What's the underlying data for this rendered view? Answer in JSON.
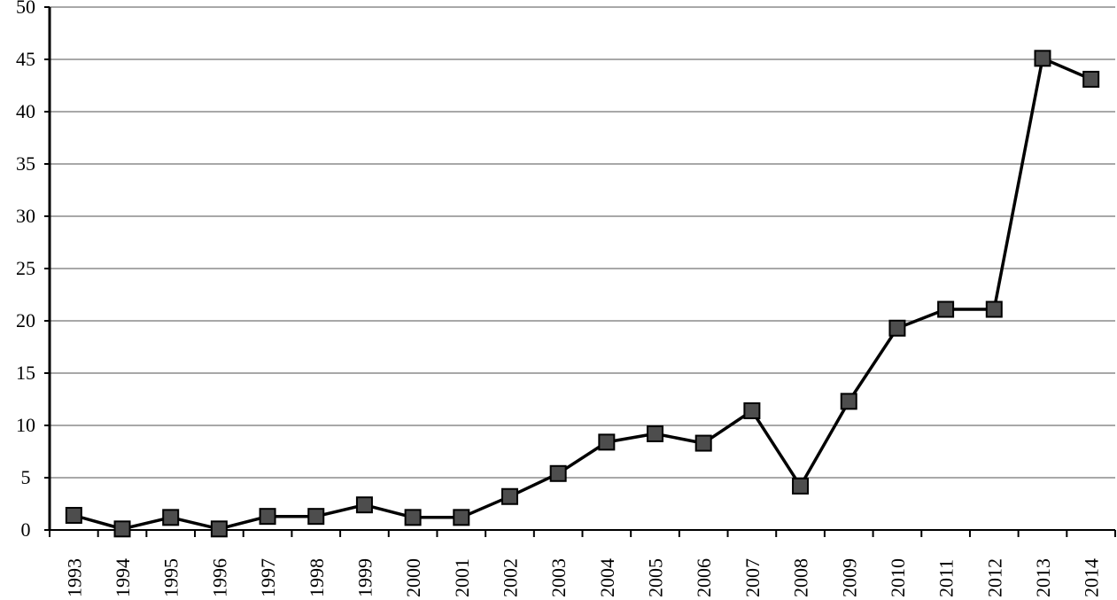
{
  "chart_data": {
    "type": "line",
    "title": "",
    "xlabel": "",
    "ylabel": "",
    "categories": [
      "1993",
      "1994",
      "1995",
      "1996",
      "1997",
      "1998",
      "1999",
      "2000",
      "2001",
      "2002",
      "2003",
      "2004",
      "2005",
      "2006",
      "2007",
      "2008",
      "2009",
      "2010",
      "2011",
      "2012",
      "2013",
      "2014"
    ],
    "series": [
      {
        "values": [
          1.4,
          0.1,
          1.2,
          0.1,
          1.3,
          1.3,
          2.4,
          1.2,
          1.2,
          3.2,
          5.4,
          8.4,
          9.2,
          8.3,
          11.4,
          4.2,
          12.3,
          19.3,
          21.1,
          21.1,
          45.1,
          43.1
        ]
      }
    ],
    "ylim": [
      0,
      50
    ],
    "yticks": [
      0,
      5,
      10,
      15,
      20,
      25,
      30,
      35,
      40,
      45,
      50
    ],
    "grid": true,
    "legend": "none",
    "colors": {
      "line": "#000000",
      "marker_fill": "#4d4d4d",
      "marker_stroke": "#000000",
      "grid": "#8c8c8c",
      "axis": "#000000"
    }
  }
}
